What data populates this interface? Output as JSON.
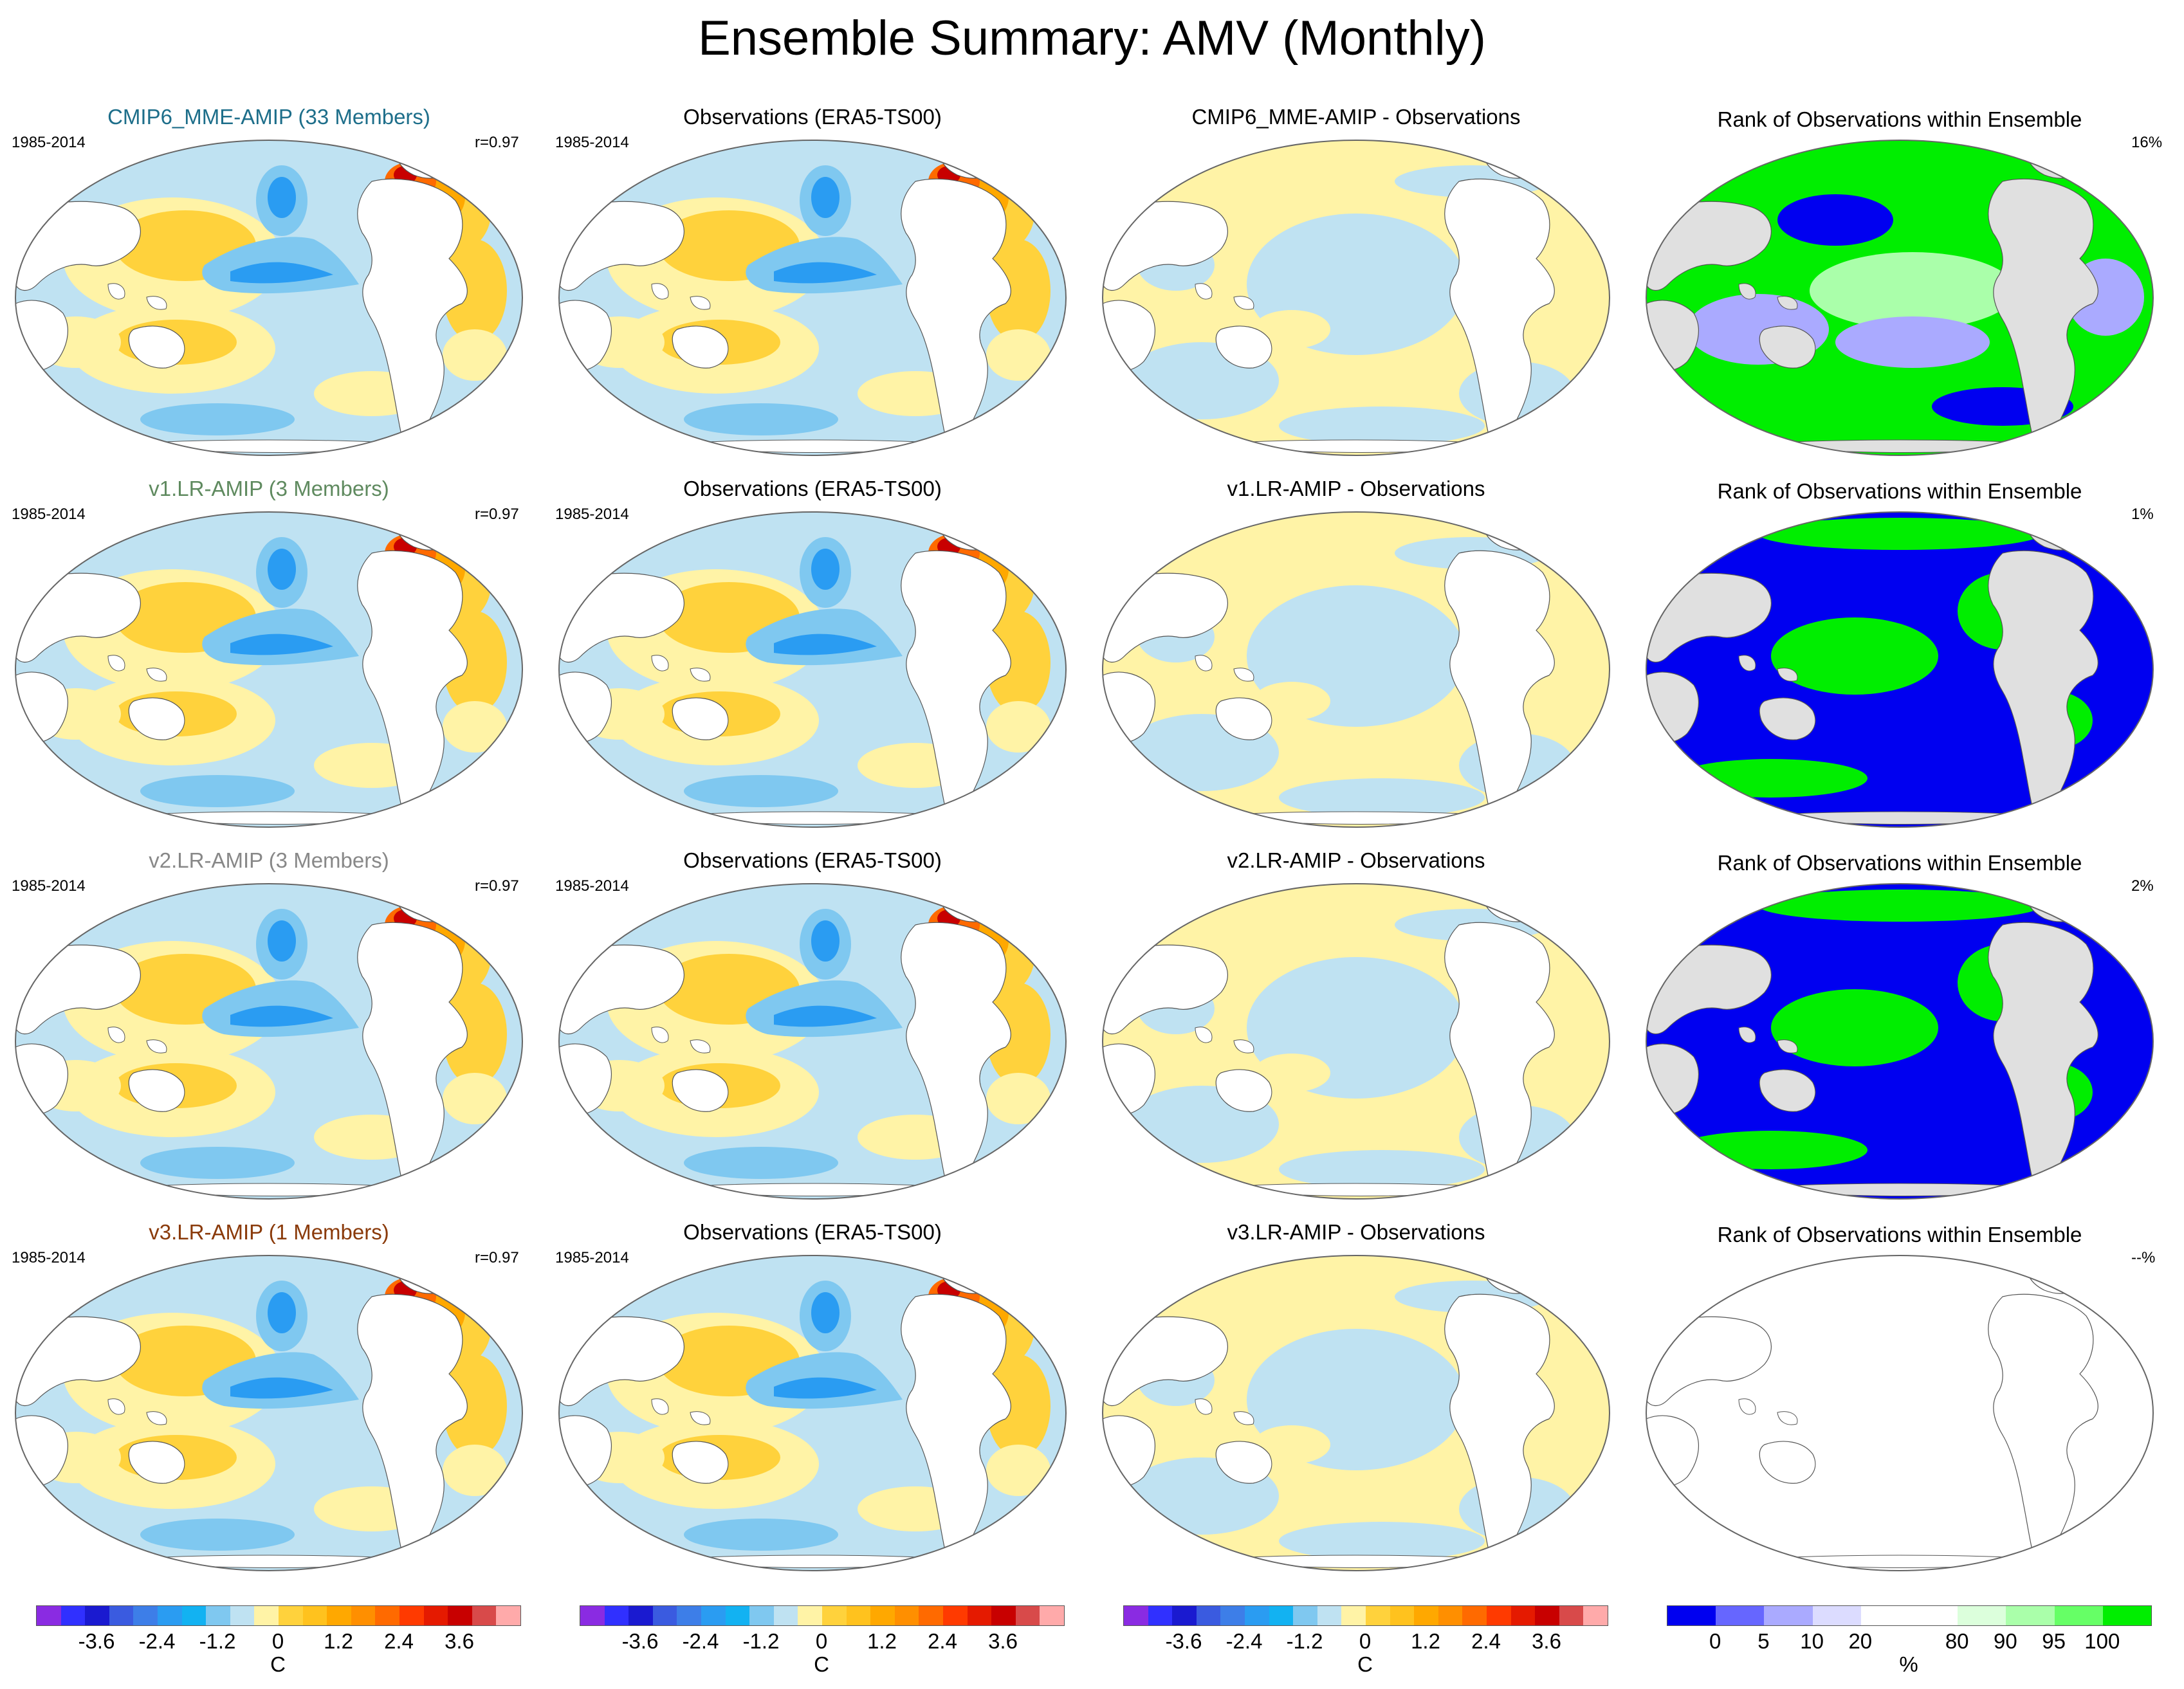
{
  "title": "Ensemble Summary: AMV (Monthly)",
  "colors": {
    "title_row1": "#1d6e8a",
    "title_row2": "#5f8a5f",
    "title_row3": "#888888",
    "title_row4": "#8a3a0a",
    "ocean_neutral_pos": "#fff3a6",
    "ocean_neutral_neg": "#bfe2f2",
    "land": "#ffffff",
    "rank_land": "#e0e0e0"
  },
  "rows": [
    {
      "model_title": "CMIP6_MME-AMIP (33 Members)",
      "period": "1985-2014",
      "corr": "r=0.97",
      "obs_title": "Observations (ERA5-TS00)",
      "obs_period": "1985-2014",
      "diff_title": "CMIP6_MME-AMIP - Observations",
      "rank_title": "Rank of Observations within Ensemble",
      "rank_pct": "16%"
    },
    {
      "model_title": "v1.LR-AMIP (3 Members)",
      "period": "1985-2014",
      "corr": "r=0.97",
      "obs_title": "Observations (ERA5-TS00)",
      "obs_period": "1985-2014",
      "diff_title": "v1.LR-AMIP - Observations",
      "rank_title": "Rank of Observations within Ensemble",
      "rank_pct": "1%"
    },
    {
      "model_title": "v2.LR-AMIP (3 Members)",
      "period": "1985-2014",
      "corr": "r=0.97",
      "obs_title": "Observations (ERA5-TS00)",
      "obs_period": "1985-2014",
      "diff_title": "v2.LR-AMIP - Observations",
      "rank_title": "Rank of Observations within Ensemble",
      "rank_pct": "2%"
    },
    {
      "model_title": "v3.LR-AMIP (1 Members)",
      "period": "1985-2014",
      "corr": "r=0.97",
      "obs_title": "Observations (ERA5-TS00)",
      "obs_period": "1985-2014",
      "diff_title": "v3.LR-AMIP - Observations",
      "rank_title": "Rank of Observations within Ensemble",
      "rank_pct": "--%"
    }
  ],
  "colorbars": {
    "temperature": {
      "colors": [
        "#8a2be2",
        "#3030ff",
        "#1a1ad0",
        "#3a5be0",
        "#3d7ee8",
        "#2a9cf2",
        "#12b2f2",
        "#7fc8f0",
        "#bfe2f2",
        "#fff3a6",
        "#ffd23c",
        "#ffc21e",
        "#ffa800",
        "#ff8f00",
        "#ff6a00",
        "#ff3a00",
        "#e51a00",
        "#c80000",
        "#d84a4a",
        "#ffaaaa"
      ],
      "ticks": [
        "-3.6",
        "-2.4",
        "-1.2",
        "0",
        "1.2",
        "2.4",
        "3.6"
      ],
      "tick_values": [
        -3.6,
        -2.4,
        -1.2,
        0,
        1.2,
        2.4,
        3.6
      ],
      "range": [
        -4.8,
        4.8
      ],
      "unit": "C"
    },
    "rank": {
      "colors": [
        "#0000f0",
        "#6666ff",
        "#aaaaff",
        "#dcdcff",
        "#ffffff",
        "#ffffff",
        "#dcffdc",
        "#aaffaa",
        "#66ff66",
        "#00ee00"
      ],
      "ticks": [
        "0",
        "5",
        "10",
        "20",
        "80",
        "90",
        "95",
        "100"
      ],
      "tick_positions": [
        1,
        2,
        3,
        4,
        6,
        7,
        8,
        9
      ],
      "unit": "%"
    }
  }
}
